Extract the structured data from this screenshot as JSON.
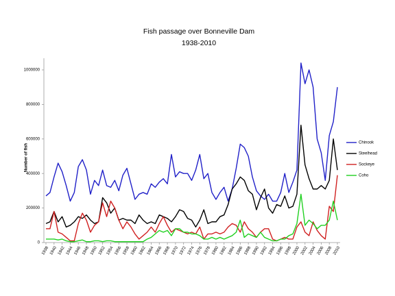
{
  "chart_data": {
    "type": "line",
    "title": "Fish passage over Bonneville Dam",
    "subtitle": "1938-2010",
    "y_label": "Number of fish",
    "x": [
      1938,
      1939,
      1940,
      1941,
      1942,
      1943,
      1944,
      1945,
      1946,
      1947,
      1948,
      1949,
      1950,
      1951,
      1952,
      1953,
      1954,
      1955,
      1956,
      1957,
      1958,
      1959,
      1960,
      1961,
      1962,
      1963,
      1964,
      1965,
      1966,
      1967,
      1968,
      1969,
      1970,
      1971,
      1972,
      1973,
      1974,
      1975,
      1976,
      1977,
      1978,
      1979,
      1980,
      1981,
      1982,
      1983,
      1984,
      1985,
      1986,
      1987,
      1988,
      1989,
      1990,
      1991,
      1992,
      1993,
      1994,
      1995,
      1996,
      1997,
      1998,
      1999,
      2000,
      2001,
      2002,
      2003,
      2004,
      2005,
      2006,
      2007,
      2008,
      2009,
      2010
    ],
    "xlim": [
      1938,
      2010
    ],
    "xticks": [
      1938,
      1940,
      1942,
      1944,
      1946,
      1948,
      1950,
      1952,
      1954,
      1956,
      1958,
      1960,
      1962,
      1964,
      1966,
      1968,
      1970,
      1972,
      1974,
      1976,
      1978,
      1980,
      1982,
      1984,
      1986,
      1988,
      1990,
      1992,
      1994,
      1996,
      1998,
      2000,
      2002,
      2004,
      2006,
      2008,
      2010
    ],
    "ylim": [
      0,
      1000000
    ],
    "yticks": [
      0,
      200000,
      400000,
      600000,
      800000,
      1000000
    ],
    "grid": false,
    "legend": "right",
    "series": [
      {
        "name": "Chinook",
        "color": "#2020c8",
        "values": [
          270000,
          290000,
          380000,
          460000,
          410000,
          330000,
          240000,
          290000,
          440000,
          480000,
          420000,
          280000,
          360000,
          330000,
          420000,
          330000,
          320000,
          360000,
          300000,
          390000,
          430000,
          340000,
          250000,
          280000,
          290000,
          280000,
          340000,
          320000,
          350000,
          370000,
          340000,
          510000,
          380000,
          410000,
          400000,
          400000,
          360000,
          420000,
          510000,
          370000,
          400000,
          290000,
          250000,
          290000,
          320000,
          240000,
          310000,
          430000,
          570000,
          550000,
          500000,
          380000,
          300000,
          270000,
          250000,
          280000,
          240000,
          240000,
          290000,
          400000,
          290000,
          350000,
          420000,
          1040000,
          920000,
          1000000,
          900000,
          600000,
          520000,
          360000,
          620000,
          700000,
          900000
        ]
      },
      {
        "name": "Steelhead",
        "color": "#000000",
        "values": [
          110000,
          120000,
          180000,
          120000,
          150000,
          90000,
          100000,
          120000,
          150000,
          140000,
          160000,
          130000,
          110000,
          120000,
          260000,
          230000,
          170000,
          200000,
          130000,
          140000,
          130000,
          130000,
          110000,
          160000,
          130000,
          110000,
          120000,
          110000,
          160000,
          150000,
          140000,
          120000,
          150000,
          190000,
          180000,
          140000,
          130000,
          90000,
          130000,
          190000,
          110000,
          120000,
          120000,
          150000,
          160000,
          220000,
          310000,
          340000,
          380000,
          360000,
          300000,
          280000,
          190000,
          260000,
          310000,
          200000,
          170000,
          220000,
          210000,
          270000,
          200000,
          210000,
          280000,
          680000,
          450000,
          370000,
          310000,
          310000,
          330000,
          310000,
          360000,
          600000,
          420000
        ]
      },
      {
        "name": "Sockeye",
        "color": "#d02020",
        "values": [
          80000,
          80000,
          180000,
          60000,
          50000,
          30000,
          10000,
          10000,
          110000,
          170000,
          130000,
          60000,
          100000,
          120000,
          230000,
          150000,
          240000,
          200000,
          130000,
          80000,
          120000,
          90000,
          50000,
          20000,
          40000,
          60000,
          90000,
          60000,
          110000,
          150000,
          100000,
          60000,
          80000,
          70000,
          60000,
          50000,
          60000,
          50000,
          90000,
          20000,
          50000,
          50000,
          60000,
          50000,
          60000,
          90000,
          110000,
          100000,
          60000,
          120000,
          80000,
          60000,
          30000,
          60000,
          80000,
          80000,
          20000,
          10000,
          20000,
          30000,
          20000,
          20000,
          90000,
          120000,
          60000,
          40000,
          120000,
          70000,
          40000,
          20000,
          210000,
          180000,
          390000
        ]
      },
      {
        "name": "Coho",
        "color": "#20d020",
        "values": [
          20000,
          20000,
          20000,
          15000,
          20000,
          10000,
          5000,
          5000,
          10000,
          15000,
          5000,
          5000,
          10000,
          10000,
          5000,
          10000,
          10000,
          5000,
          5000,
          5000,
          5000,
          5000,
          5000,
          5000,
          5000,
          20000,
          30000,
          50000,
          70000,
          60000,
          70000,
          40000,
          80000,
          80000,
          60000,
          60000,
          50000,
          50000,
          40000,
          20000,
          20000,
          30000,
          20000,
          30000,
          20000,
          30000,
          40000,
          60000,
          130000,
          30000,
          50000,
          40000,
          30000,
          60000,
          30000,
          20000,
          10000,
          10000,
          20000,
          20000,
          40000,
          50000,
          110000,
          280000,
          100000,
          130000,
          110000,
          80000,
          100000,
          100000,
          130000,
          240000,
          130000
        ]
      }
    ]
  }
}
